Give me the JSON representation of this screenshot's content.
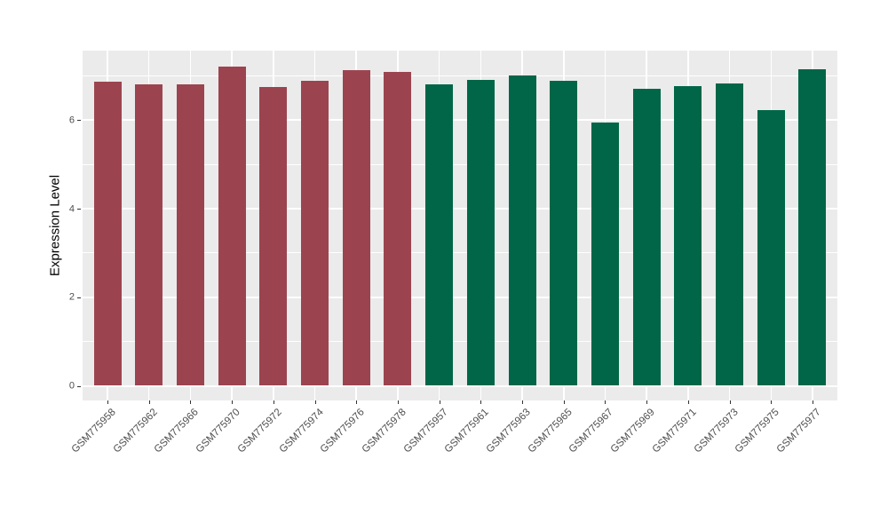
{
  "chart_data": {
    "type": "bar",
    "title": "",
    "xlabel": "",
    "ylabel": "Expression Level",
    "categories": [
      "GSM775958",
      "GSM775962",
      "GSM775966",
      "GSM775970",
      "GSM775972",
      "GSM775974",
      "GSM775976",
      "GSM775978",
      "GSM775957",
      "GSM775961",
      "GSM775963",
      "GSM775965",
      "GSM775967",
      "GSM775969",
      "GSM775971",
      "GSM775973",
      "GSM775975",
      "GSM775977"
    ],
    "values": [
      6.88,
      6.82,
      6.81,
      7.21,
      6.76,
      6.9,
      7.13,
      7.09,
      6.82,
      6.92,
      7.02,
      6.9,
      5.94,
      6.72,
      6.77,
      6.83,
      6.23,
      7.15
    ],
    "groups": [
      "group1",
      "group1",
      "group1",
      "group1",
      "group1",
      "group1",
      "group1",
      "group1",
      "group2",
      "group2",
      "group2",
      "group2",
      "group2",
      "group2",
      "group2",
      "group2",
      "group2",
      "group2"
    ],
    "group_colors": {
      "group1": "#9B4450",
      "group2": "#006647"
    },
    "yticks": [
      0,
      2,
      4,
      6
    ],
    "yticks_minor": [
      1,
      3,
      5,
      7
    ],
    "ylim": [
      0,
      7.58
    ],
    "grid": true,
    "legend_position": "none",
    "style": {
      "panel_bg": "#EBEBEB",
      "grid_major_color": "#FFFFFF",
      "grid_minor_color": "#FFFFFF",
      "tick_label_color": "#4D4D4D",
      "axis_title_color": "#000000",
      "tick_mark_color": "#333333"
    }
  }
}
